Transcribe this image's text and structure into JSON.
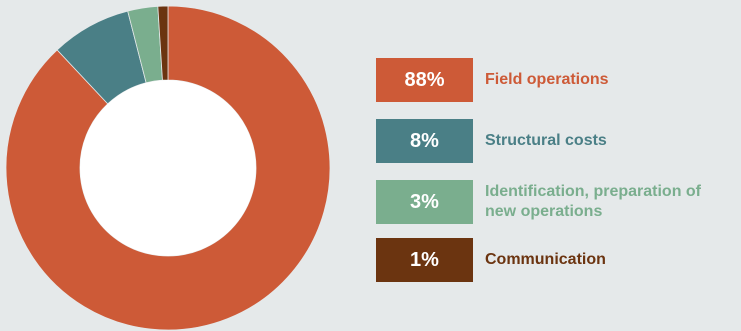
{
  "chart_data": {
    "type": "pie",
    "categories": [
      "Field operations",
      "Structural costs",
      "Identification, preparation of new operations",
      "Communication"
    ],
    "values": [
      88,
      8,
      3,
      1
    ],
    "value_labels": [
      "88%",
      "8%",
      "3%",
      "1%"
    ],
    "colors": [
      "#cd5a37",
      "#4a7f86",
      "#7aae8e",
      "#6b3410"
    ],
    "legend_position": "right",
    "donut": true
  }
}
